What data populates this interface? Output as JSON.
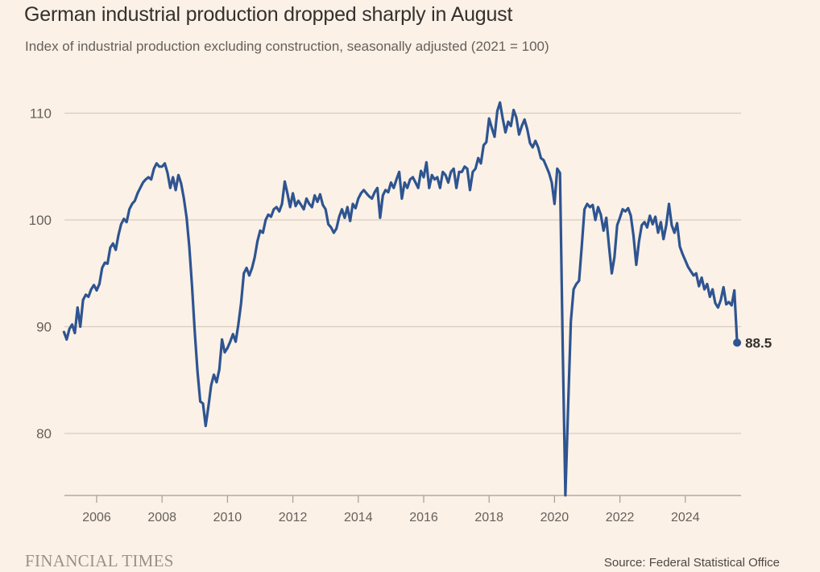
{
  "header": {
    "title": "German industrial production dropped sharply in August",
    "subtitle": "Index of industrial production excluding construction, seasonally adjusted (2021 = 100)"
  },
  "footer": {
    "brand": "FINANCIAL TIMES",
    "source": "Source: Federal Statistical Office"
  },
  "colors": {
    "background": "#fbf1e6",
    "line": "#2e5491",
    "grid": "#d9ccc0",
    "axis": "#a79d95",
    "text": "#66605c"
  },
  "chart_data": {
    "type": "line",
    "title": "German industrial production dropped sharply in August",
    "subtitle": "Index of industrial production excluding construction, seasonally adjusted (2021 = 100)",
    "xlabel": "",
    "ylabel": "",
    "x_start": "2005-01",
    "x_end": "2025-08",
    "frequency": "monthly",
    "xlim": [
      2005.0,
      2025.9
    ],
    "ylim": [
      74,
      111.5
    ],
    "x_ticks": [
      "2006",
      "2008",
      "2010",
      "2012",
      "2014",
      "2016",
      "2018",
      "2020",
      "2022",
      "2024"
    ],
    "x_tick_values": [
      2006,
      2008,
      2010,
      2012,
      2014,
      2016,
      2018,
      2020,
      2022,
      2024
    ],
    "y_ticks": [
      "80",
      "90",
      "100",
      "110"
    ],
    "y_tick_values": [
      80,
      90,
      100,
      110
    ],
    "grid": true,
    "legend": "none",
    "end_label": "88.5",
    "series": [
      {
        "name": "Industrial production index",
        "values": [
          89.5,
          88.8,
          89.8,
          90.2,
          89.4,
          91.8,
          90.0,
          92.5,
          93.0,
          92.8,
          93.5,
          93.9,
          93.4,
          94.0,
          95.5,
          96.0,
          95.9,
          97.4,
          97.8,
          97.2,
          98.6,
          99.6,
          100.1,
          99.8,
          101.0,
          101.5,
          101.8,
          102.5,
          103.0,
          103.5,
          103.8,
          104.0,
          103.8,
          104.8,
          105.3,
          105.0,
          105.0,
          105.3,
          104.4,
          103.0,
          104.0,
          102.8,
          104.2,
          103.4,
          102.0,
          100.2,
          97.5,
          93.8,
          89.5,
          85.8,
          83.0,
          82.8,
          80.7,
          82.5,
          84.5,
          85.5,
          84.8,
          86.0,
          88.8,
          87.6,
          88.0,
          88.6,
          89.3,
          88.6,
          90.2,
          92.2,
          95.0,
          95.5,
          94.8,
          95.5,
          96.5,
          98.0,
          99.0,
          98.8,
          100.0,
          100.5,
          100.3,
          101.0,
          101.2,
          100.8,
          101.5,
          103.6,
          102.5,
          101.2,
          102.5,
          101.3,
          101.8,
          101.4,
          101.0,
          102.0,
          101.5,
          101.2,
          102.3,
          101.7,
          102.4,
          101.4,
          101.0,
          99.6,
          99.3,
          98.8,
          99.2,
          100.3,
          101.0,
          100.2,
          101.2,
          99.9,
          101.5,
          101.1,
          102.0,
          102.5,
          102.8,
          102.5,
          102.2,
          102.0,
          102.6,
          103.0,
          100.2,
          102.3,
          102.8,
          102.6,
          103.5,
          103.0,
          103.8,
          104.5,
          102.0,
          103.5,
          103.0,
          103.8,
          104.0,
          103.5,
          103.0,
          104.6,
          104.0,
          105.4,
          103.0,
          104.2,
          103.8,
          104.0,
          103.0,
          104.5,
          104.2,
          103.5,
          104.5,
          104.8,
          103.0,
          104.5,
          104.5,
          105.0,
          104.8,
          102.8,
          104.5,
          104.8,
          105.8,
          105.3,
          107.0,
          107.3,
          109.5,
          108.6,
          107.8,
          110.2,
          111.0,
          109.5,
          108.2,
          109.2,
          108.8,
          110.3,
          109.6,
          108.0,
          108.8,
          109.4,
          108.5,
          107.2,
          106.8,
          107.4,
          106.8,
          105.8,
          105.6,
          105.0,
          104.4,
          103.5,
          101.5,
          104.8,
          104.4,
          88.0,
          74.2,
          82.5,
          90.5,
          93.5,
          94.0,
          94.3,
          97.5,
          101.0,
          101.5,
          101.2,
          101.4,
          100.0,
          101.2,
          100.5,
          99.0,
          100.2,
          97.5,
          95.0,
          96.5,
          99.5,
          100.2,
          101.0,
          100.8,
          101.1,
          100.4,
          98.5,
          95.8,
          98.0,
          99.5,
          99.8,
          99.3,
          100.4,
          99.6,
          100.3,
          98.8,
          99.8,
          98.2,
          99.5,
          101.5,
          99.5,
          98.8,
          99.7,
          97.5,
          96.8,
          96.2,
          95.6,
          95.2,
          94.8,
          95.0,
          93.8,
          94.6,
          93.5,
          94.0,
          92.8,
          93.5,
          92.2,
          91.8,
          92.5,
          93.7,
          92.1,
          92.3,
          92.0,
          93.4,
          88.5
        ]
      }
    ]
  }
}
